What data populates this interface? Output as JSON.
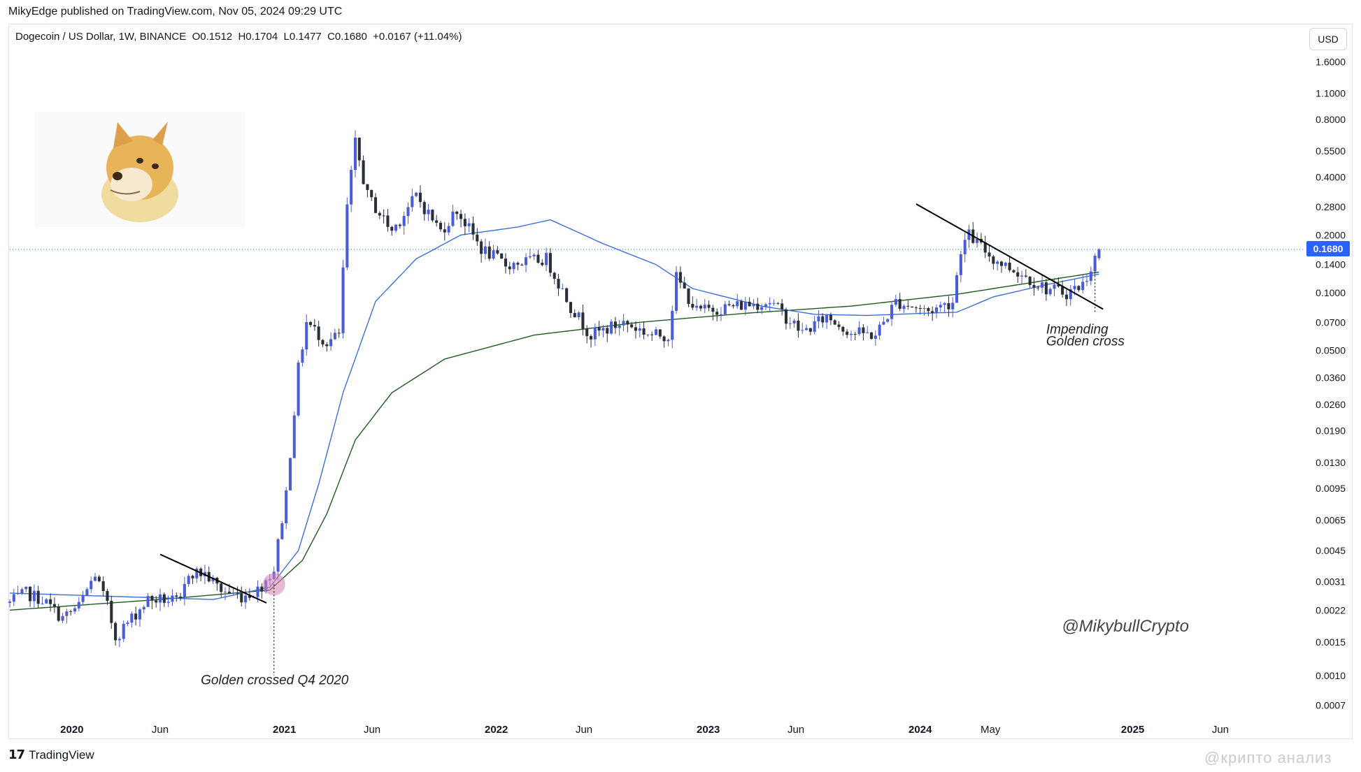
{
  "header": {
    "published": "MikyEdge published on TradingView.com, Nov 05, 2024 09:29 UTC",
    "legend": "Dogecoin / US Dollar, 1W, BINANCE  O0.1512  H0.1704  L0.1477  C0.1680  +0.0167 (+11.04%)",
    "currency_button": "USD"
  },
  "footer": {
    "brand": "TradingView",
    "corner_watermark": "@крипто анализ"
  },
  "chart_data": {
    "type": "candlestick",
    "symbol": "Dogecoin / US Dollar",
    "interval": "1W",
    "exchange": "BINANCE",
    "ohlc": {
      "open": 0.1512,
      "high": 0.1704,
      "low": 0.1477,
      "close": 0.168,
      "change": 0.0167,
      "change_pct": 11.04
    },
    "current_price_label": "0.1680",
    "y_scale": "log",
    "y_ticks": [
      "1.6000",
      "1.1000",
      "0.8000",
      "0.5500",
      "0.4000",
      "0.2800",
      "0.2000",
      "0.1400",
      "0.1000",
      "0.0700",
      "0.0500",
      "0.0360",
      "0.0260",
      "0.0190",
      "0.0130",
      "0.0095",
      "0.0065",
      "0.0045",
      "0.0031",
      "0.0022",
      "0.0015",
      "0.0010",
      "0.0007"
    ],
    "x_ticks": [
      {
        "label": "2020",
        "bold": true
      },
      {
        "label": "Jun",
        "bold": false
      },
      {
        "label": "2021",
        "bold": true
      },
      {
        "label": "Jun",
        "bold": false
      },
      {
        "label": "2022",
        "bold": true
      },
      {
        "label": "Jun",
        "bold": false
      },
      {
        "label": "2023",
        "bold": true
      },
      {
        "label": "Jun",
        "bold": false
      },
      {
        "label": "2024",
        "bold": true
      },
      {
        "label": "May",
        "bold": false
      },
      {
        "label": "2025",
        "bold": true
      },
      {
        "label": "Jun",
        "bold": false
      }
    ],
    "x_tick_dates": [
      "2020-01-01",
      "2020-06-01",
      "2021-01-01",
      "2021-06-01",
      "2022-01-01",
      "2022-06-01",
      "2023-01-01",
      "2023-06-01",
      "2024-01-01",
      "2024-05-01",
      "2025-01-01",
      "2025-06-01"
    ],
    "x_range": [
      "2019-09-16",
      "2025-10-20"
    ],
    "ylim": [
      0.0006,
      1.75
    ],
    "series": [
      {
        "name": "price",
        "color_up": "#4b5dd6",
        "color_down": "#2a2e39"
      },
      {
        "name": "ma_blue",
        "color": "#3a6fd8"
      },
      {
        "name": "ma_green",
        "color": "#1f5a1f"
      }
    ],
    "anchors": [
      {
        "date": "2019-09-16",
        "price": 0.0024
      },
      {
        "date": "2019-10-14",
        "price": 0.0027
      },
      {
        "date": "2019-11-11",
        "price": 0.0025
      },
      {
        "date": "2019-12-16",
        "price": 0.002
      },
      {
        "date": "2020-01-13",
        "price": 0.0023
      },
      {
        "date": "2020-02-10",
        "price": 0.0034
      },
      {
        "date": "2020-03-02",
        "price": 0.0023
      },
      {
        "date": "2020-03-16",
        "price": 0.0016
      },
      {
        "date": "2020-04-13",
        "price": 0.002
      },
      {
        "date": "2020-05-11",
        "price": 0.0025
      },
      {
        "date": "2020-06-08",
        "price": 0.0025
      },
      {
        "date": "2020-07-06",
        "price": 0.0024
      },
      {
        "date": "2020-07-20",
        "price": 0.0035
      },
      {
        "date": "2020-08-17",
        "price": 0.0034
      },
      {
        "date": "2020-09-14",
        "price": 0.0028
      },
      {
        "date": "2020-10-19",
        "price": 0.0026
      },
      {
        "date": "2020-11-16",
        "price": 0.0028
      },
      {
        "date": "2020-12-14",
        "price": 0.0036
      },
      {
        "date": "2021-01-04",
        "price": 0.009
      },
      {
        "date": "2021-01-25",
        "price": 0.04
      },
      {
        "date": "2021-02-08",
        "price": 0.07
      },
      {
        "date": "2021-03-15",
        "price": 0.055
      },
      {
        "date": "2021-04-05",
        "price": 0.06
      },
      {
        "date": "2021-04-19",
        "price": 0.28
      },
      {
        "date": "2021-05-03",
        "price": 0.6
      },
      {
        "date": "2021-05-24",
        "price": 0.32
      },
      {
        "date": "2021-07-05",
        "price": 0.21
      },
      {
        "date": "2021-08-16",
        "price": 0.32
      },
      {
        "date": "2021-09-27",
        "price": 0.21
      },
      {
        "date": "2021-10-25",
        "price": 0.27
      },
      {
        "date": "2021-12-06",
        "price": 0.17
      },
      {
        "date": "2022-01-17",
        "price": 0.14
      },
      {
        "date": "2022-03-28",
        "price": 0.15
      },
      {
        "date": "2022-05-09",
        "price": 0.085
      },
      {
        "date": "2022-06-13",
        "price": 0.06
      },
      {
        "date": "2022-08-08",
        "price": 0.07
      },
      {
        "date": "2022-09-26",
        "price": 0.06
      },
      {
        "date": "2022-10-24",
        "price": 0.06
      },
      {
        "date": "2022-11-07",
        "price": 0.12
      },
      {
        "date": "2022-12-12",
        "price": 0.08
      },
      {
        "date": "2023-02-13",
        "price": 0.085
      },
      {
        "date": "2023-04-17",
        "price": 0.09
      },
      {
        "date": "2023-06-12",
        "price": 0.062
      },
      {
        "date": "2023-07-24",
        "price": 0.075
      },
      {
        "date": "2023-09-04",
        "price": 0.062
      },
      {
        "date": "2023-10-16",
        "price": 0.06
      },
      {
        "date": "2023-11-20",
        "price": 0.09
      },
      {
        "date": "2024-01-15",
        "price": 0.08
      },
      {
        "date": "2024-02-26",
        "price": 0.09
      },
      {
        "date": "2024-03-11",
        "price": 0.17
      },
      {
        "date": "2024-03-25",
        "price": 0.2
      },
      {
        "date": "2024-05-06",
        "price": 0.15
      },
      {
        "date": "2024-06-24",
        "price": 0.125
      },
      {
        "date": "2024-08-05",
        "price": 0.105
      },
      {
        "date": "2024-09-09",
        "price": 0.1
      },
      {
        "date": "2024-10-07",
        "price": 0.11
      },
      {
        "date": "2024-10-28",
        "price": 0.1512
      },
      {
        "date": "2024-11-04",
        "price": 0.168
      }
    ],
    "ma_blue": [
      {
        "date": "2019-09-16",
        "value": 0.0027
      },
      {
        "date": "2020-03-01",
        "value": 0.0026
      },
      {
        "date": "2020-09-01",
        "value": 0.0025
      },
      {
        "date": "2020-12-07",
        "value": 0.0029
      },
      {
        "date": "2021-01-25",
        "value": 0.0045
      },
      {
        "date": "2021-03-01",
        "value": 0.01
      },
      {
        "date": "2021-04-12",
        "value": 0.03
      },
      {
        "date": "2021-06-07",
        "value": 0.09
      },
      {
        "date": "2021-08-16",
        "value": 0.15
      },
      {
        "date": "2021-11-01",
        "value": 0.2
      },
      {
        "date": "2022-02-07",
        "value": 0.22
      },
      {
        "date": "2022-04-04",
        "value": 0.24
      },
      {
        "date": "2022-07-04",
        "value": 0.18
      },
      {
        "date": "2022-10-03",
        "value": 0.14
      },
      {
        "date": "2022-12-05",
        "value": 0.105
      },
      {
        "date": "2023-04-03",
        "value": 0.085
      },
      {
        "date": "2023-07-03",
        "value": 0.077
      },
      {
        "date": "2023-10-02",
        "value": 0.076
      },
      {
        "date": "2024-01-08",
        "value": 0.078
      },
      {
        "date": "2024-03-04",
        "value": 0.079
      },
      {
        "date": "2024-05-06",
        "value": 0.095
      },
      {
        "date": "2024-08-05",
        "value": 0.11
      },
      {
        "date": "2024-11-04",
        "value": 0.125
      }
    ],
    "ma_green": [
      {
        "date": "2019-09-16",
        "value": 0.0022
      },
      {
        "date": "2020-06-01",
        "value": 0.0025
      },
      {
        "date": "2020-12-07",
        "value": 0.0028
      },
      {
        "date": "2021-02-01",
        "value": 0.004
      },
      {
        "date": "2021-03-15",
        "value": 0.007
      },
      {
        "date": "2021-05-03",
        "value": 0.017
      },
      {
        "date": "2021-07-05",
        "value": 0.03
      },
      {
        "date": "2021-10-04",
        "value": 0.045
      },
      {
        "date": "2022-03-07",
        "value": 0.06
      },
      {
        "date": "2022-09-05",
        "value": 0.07
      },
      {
        "date": "2023-03-06",
        "value": 0.078
      },
      {
        "date": "2023-09-04",
        "value": 0.085
      },
      {
        "date": "2024-03-04",
        "value": 0.098
      },
      {
        "date": "2024-11-04",
        "value": 0.128
      }
    ],
    "trendlines": [
      {
        "from": {
          "date": "2020-06-01",
          "price": 0.0043
        },
        "to": {
          "date": "2020-12-01",
          "price": 0.0024
        }
      },
      {
        "from": {
          "date": "2023-12-25",
          "price": 0.29
        },
        "to": {
          "date": "2024-11-11",
          "price": 0.082
        }
      }
    ],
    "golden_cross_markers": [
      {
        "date": "2020-12-14",
        "price": 0.003
      }
    ],
    "markers_vertical": [
      {
        "date": "2020-12-14",
        "from_price": 0.003,
        "to_price": 0.001
      },
      {
        "date": "2024-10-28",
        "from_price": 0.128,
        "to_price": 0.078
      }
    ],
    "annotations": [
      {
        "text": "Golden crossed Q4 2020",
        "date": "2020-08-10",
        "price": 0.0009
      },
      {
        "text": "Impending",
        "date": "2024-08-05",
        "price": 0.061
      },
      {
        "text": "Golden cross",
        "date": "2024-08-05",
        "price": 0.053
      },
      {
        "text": "@MikybullCrypto",
        "date": "2024-09-01",
        "price": 0.0017
      }
    ],
    "grid": false,
    "legend_position": "top-left"
  }
}
